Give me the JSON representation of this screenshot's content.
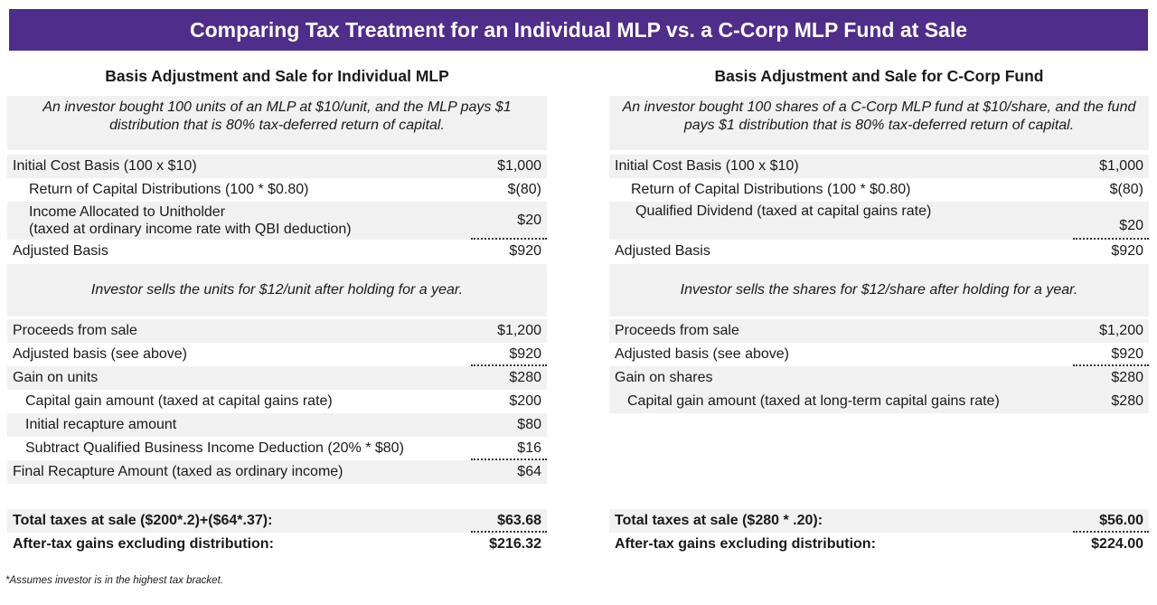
{
  "title": "Comparing Tax Treatment for an Individual MLP vs. a C-Corp MLP Fund at Sale",
  "left": {
    "heading": "Basis Adjustment and Sale for Individual MLP",
    "intro": "An investor bought 100 units of an MLP at $10/unit, and the MLP pays $1 distribution that is 80% tax-deferred return of capital.",
    "initial_cost": {
      "label": "Initial Cost Basis (100 x $10)",
      "value": "$1,000"
    },
    "roc": {
      "label": "Return of Capital Distributions (100 * $0.80)",
      "value": "$(80)"
    },
    "income_line1": "Income Allocated to Unitholder",
    "income_line2": "(taxed at ordinary income rate with QBI deduction)",
    "income_value": "$20",
    "adjusted_basis": {
      "label": "Adjusted Basis",
      "value": "$920"
    },
    "sale_note": "Investor sells the units for $12/unit after holding for a year.",
    "proceeds": {
      "label": "Proceeds from sale",
      "value": "$1,200"
    },
    "adj_basis_see": {
      "label": "Adjusted basis (see above)",
      "value": "$920"
    },
    "gain": {
      "label": "Gain on units",
      "value": "$280"
    },
    "cap_gain": {
      "label": "Capital gain amount (taxed at capital gains rate)",
      "value": "$200"
    },
    "recapture": {
      "label": "Initial recapture amount",
      "value": "$80"
    },
    "qbi": {
      "label": "Subtract Qualified Business Income Deduction (20% * $80)",
      "value": "$16"
    },
    "final_recapture": {
      "label": "Final Recapture Amount (taxed as ordinary income)",
      "value": "$64"
    },
    "total_taxes": {
      "label": "Total taxes at sale ($200*.2)+($64*.37):",
      "value": "$63.68"
    },
    "after_tax": {
      "label": "After-tax gains excluding distribution:",
      "value": "$216.32"
    }
  },
  "right": {
    "heading": "Basis Adjustment and Sale for C-Corp Fund",
    "intro": "An investor bought 100 shares of a C-Corp MLP fund at $10/share, and the fund pays $1 distribution that is 80% tax-deferred return of capital.",
    "initial_cost": {
      "label": "Initial Cost Basis (100 x $10)",
      "value": "$1,000"
    },
    "roc": {
      "label": "Return of Capital Distributions (100 * $0.80)",
      "value": "$(80)"
    },
    "qualified_dividend": {
      "label": "Qualified Dividend (taxed at capital gains rate)",
      "value": "$20"
    },
    "adjusted_basis": {
      "label": "Adjusted Basis",
      "value": "$920"
    },
    "sale_note": "Investor sells the shares for $12/share after holding for a year.",
    "proceeds": {
      "label": "Proceeds from sale",
      "value": "$1,200"
    },
    "adj_basis_see": {
      "label": "Adjusted basis (see above)",
      "value": "$920"
    },
    "gain": {
      "label": "Gain on shares",
      "value": "$280"
    },
    "cap_gain": {
      "label": "Capital gain amount (taxed at long-term capital gains rate)",
      "value": "$280"
    },
    "total_taxes": {
      "label": "Total taxes at sale ($280 * .20):",
      "value": "$56.00"
    },
    "after_tax": {
      "label": "After-tax gains excluding distribution:",
      "value": "$224.00"
    }
  },
  "footnote": "*Assumes investor is in the highest tax bracket.",
  "colors": {
    "banner": "#4f2d8a",
    "shade": "#f1f1f1"
  }
}
